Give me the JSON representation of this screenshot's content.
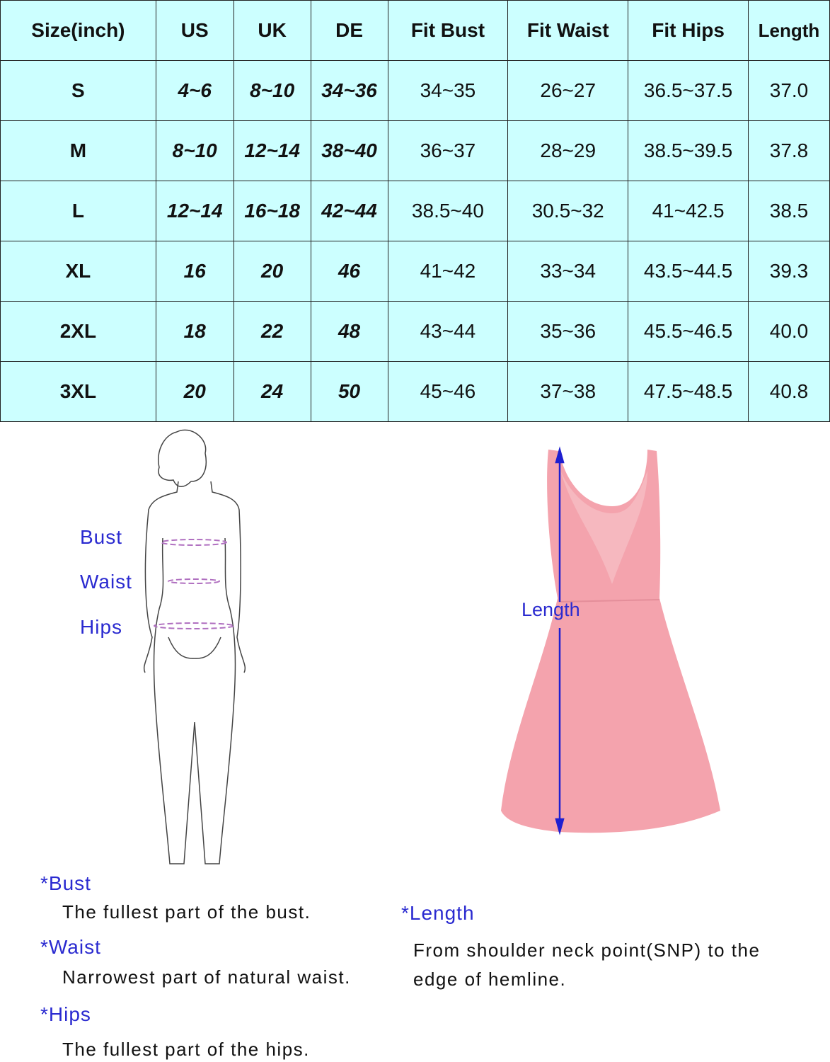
{
  "table": {
    "headers": [
      "Size(inch)",
      "US",
      "UK",
      "DE",
      "Fit Bust",
      "Fit Waist",
      "Fit Hips",
      "Length"
    ],
    "rows": [
      [
        "S",
        "4~6",
        "8~10",
        "34~36",
        "34~35",
        "26~27",
        "36.5~37.5",
        "37.0"
      ],
      [
        "M",
        "8~10",
        "12~14",
        "38~40",
        "36~37",
        "28~29",
        "38.5~39.5",
        "37.8"
      ],
      [
        "L",
        "12~14",
        "16~18",
        "42~44",
        "38.5~40",
        "30.5~32",
        "41~42.5",
        "38.5"
      ],
      [
        "XL",
        "16",
        "20",
        "46",
        "41~42",
        "33~34",
        "43.5~44.5",
        "39.3"
      ],
      [
        "2XL",
        "18",
        "22",
        "48",
        "43~44",
        "35~36",
        "45.5~46.5",
        "40.0"
      ],
      [
        "3XL",
        "20",
        "24",
        "50",
        "45~46",
        "37~38",
        "47.5~48.5",
        "40.8"
      ]
    ]
  },
  "figure": {
    "bust": "Bust",
    "waist": "Waist",
    "hips": "Hips"
  },
  "dress": {
    "length": "Length"
  },
  "notes": {
    "bust_title": "*Bust",
    "bust_text": "The fullest part of the bust.",
    "waist_title": "*Waist",
    "waist_text": "Narrowest part of natural waist.",
    "hips_title": "*Hips",
    "hips_text": "The fullest part of the hips.",
    "length_title": "*Length",
    "length_text": "From shoulder neck point(SNP) to the edge of hemline."
  },
  "colors": {
    "table_bg": "#ccffff",
    "label": "#2a2ad0",
    "dress": "#f4a3ad",
    "measure_line": "#b070c0"
  }
}
